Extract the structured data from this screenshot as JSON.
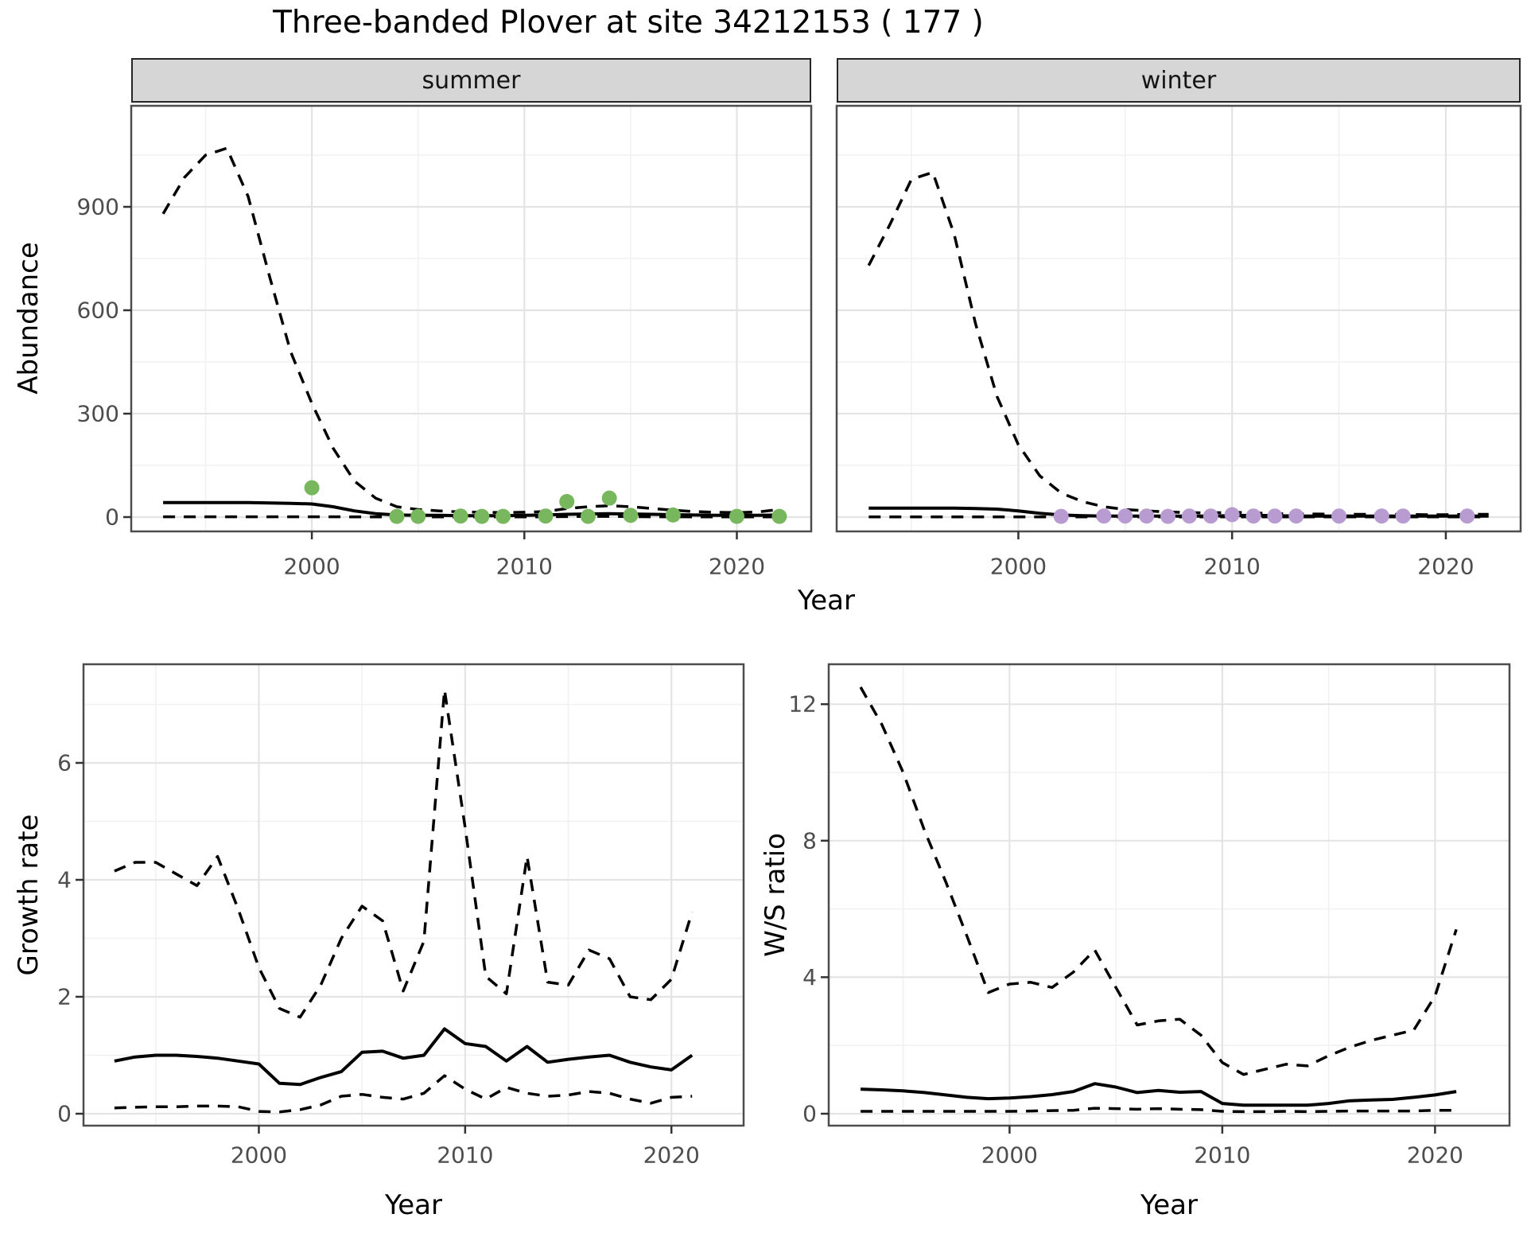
{
  "title": "Three-banded Plover at site 34212153 ( 177 )",
  "facets": [
    "summer",
    "winter"
  ],
  "axis_labels": {
    "x": "Year",
    "abundance": "Abundance",
    "growth": "Growth rate",
    "ws": "W/S ratio"
  },
  "colors": {
    "summer_points": "#79B75F",
    "winter_points": "#B89BD1",
    "line": "#000000",
    "grid_major": "#e4e4e4",
    "grid_minor": "#f1f1f1",
    "panel_border": "#4d4d4d",
    "tick_text": "#4d4d4d",
    "strip_fill": "#d6d6d6"
  },
  "chart_data": [
    {
      "id": "abundance-summer",
      "type": "line",
      "facet": "summer",
      "xlabel": "Year",
      "ylabel": "Abundance",
      "xlim": [
        1991.5,
        2023.5
      ],
      "ylim": [
        0,
        1100
      ],
      "xticks": [
        2000,
        2010,
        2020
      ],
      "yticks": [
        0,
        300,
        600,
        900
      ],
      "yticks_minor": [
        150,
        450,
        750,
        1050
      ],
      "xticks_minor": [
        1995,
        2005,
        2015
      ],
      "x": [
        1993,
        1994,
        1995,
        1996,
        1997,
        1998,
        1999,
        2000,
        2001,
        2002,
        2003,
        2004,
        2005,
        2006,
        2007,
        2008,
        2009,
        2010,
        2011,
        2012,
        2013,
        2014,
        2015,
        2016,
        2017,
        2018,
        2019,
        2020,
        2021,
        2022
      ],
      "series": [
        {
          "name": "upper-ci-dashed",
          "style": "dashed",
          "values": [
            880,
            985,
            1050,
            1070,
            930,
            700,
            480,
            330,
            200,
            105,
            55,
            30,
            22,
            18,
            15,
            14,
            13,
            14,
            16,
            25,
            30,
            33,
            30,
            25,
            20,
            16,
            14,
            13,
            15,
            22
          ]
        },
        {
          "name": "median-solid",
          "style": "solid",
          "values": [
            42,
            42,
            42,
            42,
            42,
            41,
            40,
            38,
            30,
            18,
            10,
            6,
            5,
            5,
            4,
            4,
            4,
            5,
            6,
            8,
            9,
            10,
            9,
            8,
            7,
            6,
            5,
            5,
            5,
            6
          ]
        },
        {
          "name": "lower-ci-dashed",
          "style": "dashed",
          "values": [
            1,
            1,
            1,
            1,
            1,
            1,
            1,
            1,
            1,
            0.5,
            0.5,
            0.5,
            0.5,
            0.5,
            0.5,
            0.5,
            0.5,
            0.5,
            1,
            1.5,
            2,
            2,
            1.5,
            1,
            1,
            0.5,
            0.5,
            0.5,
            0.5,
            0.5
          ]
        }
      ],
      "points": {
        "name": "summer-observations",
        "color_key": "summer_points",
        "data": [
          [
            2000,
            85
          ],
          [
            2004,
            2
          ],
          [
            2005,
            2
          ],
          [
            2007,
            3
          ],
          [
            2008,
            2
          ],
          [
            2009,
            2
          ],
          [
            2011,
            3
          ],
          [
            2012,
            45
          ],
          [
            2013,
            2
          ],
          [
            2014,
            55
          ],
          [
            2015,
            5
          ],
          [
            2017,
            6
          ],
          [
            2020,
            2
          ],
          [
            2022,
            2
          ]
        ]
      }
    },
    {
      "id": "abundance-winter",
      "type": "line",
      "facet": "winter",
      "xlabel": "Year",
      "ylabel": "Abundance",
      "xlim": [
        1991.5,
        2023.5
      ],
      "ylim": [
        0,
        1100
      ],
      "xticks": [
        2000,
        2010,
        2020
      ],
      "yticks": [
        0,
        300,
        600,
        900
      ],
      "yticks_minor": [
        150,
        450,
        750,
        1050
      ],
      "xticks_minor": [
        1995,
        2005,
        2015
      ],
      "x": [
        1993,
        1994,
        1995,
        1996,
        1997,
        1998,
        1999,
        2000,
        2001,
        2002,
        2003,
        2004,
        2005,
        2006,
        2007,
        2008,
        2009,
        2010,
        2011,
        2012,
        2013,
        2014,
        2015,
        2016,
        2017,
        2018,
        2019,
        2020,
        2021,
        2022
      ],
      "series": [
        {
          "name": "upper-ci-dashed",
          "style": "dashed",
          "values": [
            730,
            850,
            980,
            1000,
            820,
            560,
            350,
            210,
            120,
            70,
            45,
            30,
            22,
            18,
            15,
            13,
            12,
            14,
            12,
            10,
            9,
            9,
            8,
            8,
            8,
            8,
            7,
            7,
            8,
            8
          ]
        },
        {
          "name": "median-solid",
          "style": "solid",
          "values": [
            26,
            26,
            26,
            26,
            26,
            25,
            23,
            18,
            11,
            6,
            4,
            3,
            3,
            3,
            3,
            3,
            3,
            4,
            5,
            4,
            3,
            3,
            3,
            3,
            3,
            3,
            3,
            3,
            3,
            3
          ]
        },
        {
          "name": "lower-ci-dashed",
          "style": "dashed",
          "values": [
            0.5,
            0.5,
            0.5,
            0.5,
            0.5,
            0.5,
            0.5,
            0.5,
            0.5,
            0.5,
            0.5,
            0.5,
            0.5,
            0.5,
            0.5,
            0.5,
            0.5,
            0.5,
            0.5,
            0.5,
            0.5,
            0.5,
            0.5,
            0.5,
            0.5,
            0.5,
            0.5,
            0.5,
            0.5,
            0.5
          ]
        }
      ],
      "points": {
        "name": "winter-observations",
        "color_key": "winter_points",
        "data": [
          [
            2002,
            2
          ],
          [
            2004,
            3
          ],
          [
            2005,
            3
          ],
          [
            2006,
            3
          ],
          [
            2007,
            2
          ],
          [
            2008,
            3
          ],
          [
            2009,
            3
          ],
          [
            2010,
            7
          ],
          [
            2011,
            3
          ],
          [
            2012,
            3
          ],
          [
            2013,
            3
          ],
          [
            2015,
            3
          ],
          [
            2017,
            3
          ],
          [
            2018,
            3
          ],
          [
            2021,
            3
          ]
        ]
      }
    },
    {
      "id": "growth-rate",
      "type": "line",
      "facet": null,
      "xlabel": "Year",
      "ylabel": "Growth rate",
      "xlim": [
        1991.5,
        2023.5
      ],
      "ylim": [
        0,
        7.7
      ],
      "xticks": [
        2000,
        2010,
        2020
      ],
      "yticks": [
        0,
        2,
        4,
        6
      ],
      "yticks_minor": [
        1,
        3,
        5,
        7
      ],
      "xticks_minor": [
        1995,
        2005,
        2015
      ],
      "x": [
        1993,
        1994,
        1995,
        1996,
        1997,
        1998,
        1999,
        2000,
        2001,
        2002,
        2003,
        2004,
        2005,
        2006,
        2007,
        2008,
        2009,
        2010,
        2011,
        2012,
        2013,
        2014,
        2015,
        2016,
        2017,
        2018,
        2019,
        2020,
        2021
      ],
      "series": [
        {
          "name": "upper-ci-dashed",
          "style": "dashed",
          "values": [
            4.15,
            4.3,
            4.3,
            4.1,
            3.9,
            4.4,
            3.5,
            2.5,
            1.8,
            1.65,
            2.2,
            3.0,
            3.55,
            3.3,
            2.1,
            2.95,
            7.25,
            4.9,
            2.35,
            2.05,
            4.4,
            2.25,
            2.2,
            2.8,
            2.65,
            2.0,
            1.95,
            2.3,
            3.45
          ]
        },
        {
          "name": "median-solid",
          "style": "solid",
          "values": [
            0.9,
            0.97,
            1.0,
            1.0,
            0.98,
            0.95,
            0.9,
            0.85,
            0.52,
            0.5,
            0.62,
            0.72,
            1.05,
            1.07,
            0.95,
            1.0,
            1.45,
            1.2,
            1.15,
            0.9,
            1.15,
            0.88,
            0.93,
            0.97,
            1.0,
            0.88,
            0.8,
            0.75,
            1.0
          ]
        },
        {
          "name": "lower-ci-dashed",
          "style": "dashed",
          "values": [
            0.1,
            0.11,
            0.12,
            0.12,
            0.13,
            0.13,
            0.12,
            0.04,
            0.03,
            0.07,
            0.15,
            0.3,
            0.33,
            0.28,
            0.25,
            0.35,
            0.65,
            0.42,
            0.25,
            0.45,
            0.35,
            0.3,
            0.32,
            0.38,
            0.35,
            0.25,
            0.18,
            0.28,
            0.3
          ]
        }
      ],
      "points": null
    },
    {
      "id": "ws-ratio",
      "type": "line",
      "facet": null,
      "xlabel": "Year",
      "ylabel": "W/S ratio",
      "xlim": [
        1991.5,
        2023.5
      ],
      "ylim": [
        0,
        13.2
      ],
      "xticks": [
        2000,
        2010,
        2020
      ],
      "yticks": [
        0,
        4,
        8,
        12
      ],
      "yticks_minor": [
        2,
        6,
        10
      ],
      "xticks_minor": [
        1995,
        2005,
        2015
      ],
      "x": [
        1993,
        1994,
        1995,
        1996,
        1997,
        1998,
        1999,
        2000,
        2001,
        2002,
        2003,
        2004,
        2005,
        2006,
        2007,
        2008,
        2009,
        2010,
        2011,
        2012,
        2013,
        2014,
        2015,
        2016,
        2017,
        2018,
        2019,
        2020,
        2021
      ],
      "series": [
        {
          "name": "upper-ci-dashed",
          "style": "dashed",
          "values": [
            12.5,
            11.4,
            10.0,
            8.3,
            6.8,
            5.2,
            3.55,
            3.8,
            3.85,
            3.7,
            4.15,
            4.8,
            3.7,
            2.6,
            2.72,
            2.77,
            2.3,
            1.5,
            1.15,
            1.3,
            1.45,
            1.4,
            1.7,
            1.95,
            2.15,
            2.3,
            2.45,
            3.45,
            5.4
          ]
        },
        {
          "name": "median-solid",
          "style": "solid",
          "values": [
            0.72,
            0.7,
            0.67,
            0.62,
            0.55,
            0.48,
            0.44,
            0.46,
            0.5,
            0.56,
            0.65,
            0.88,
            0.78,
            0.62,
            0.68,
            0.63,
            0.65,
            0.3,
            0.25,
            0.25,
            0.25,
            0.25,
            0.3,
            0.38,
            0.4,
            0.42,
            0.48,
            0.55,
            0.65
          ]
        },
        {
          "name": "lower-ci-dashed",
          "style": "dashed",
          "values": [
            0.07,
            0.07,
            0.07,
            0.07,
            0.07,
            0.07,
            0.07,
            0.07,
            0.08,
            0.09,
            0.1,
            0.16,
            0.15,
            0.13,
            0.15,
            0.13,
            0.12,
            0.07,
            0.06,
            0.06,
            0.07,
            0.06,
            0.07,
            0.08,
            0.08,
            0.08,
            0.08,
            0.1,
            0.1
          ]
        }
      ],
      "points": null
    }
  ]
}
